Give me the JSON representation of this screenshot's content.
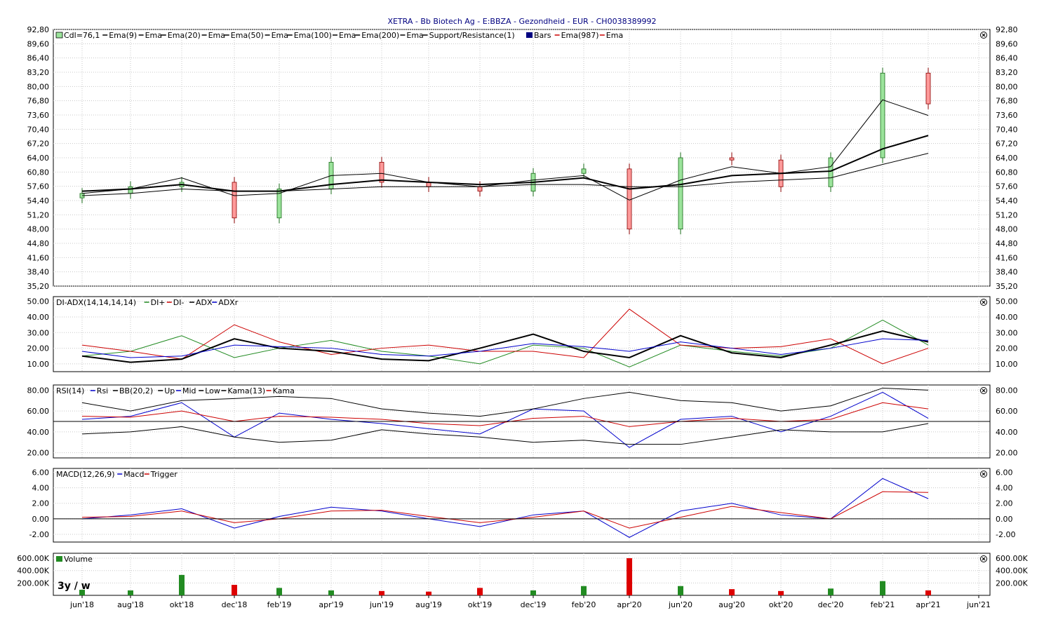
{
  "title": "XETRA - Bb Biotech Ag - E:BBZA - Gezondheid - EUR - CH0038389992",
  "period_badge": "3y / w",
  "x_axis_labels": [
    "jun'18",
    "aug'18",
    "okt'18",
    "dec'18",
    "feb'19",
    "apr'19",
    "jun'19",
    "aug'19",
    "okt'19",
    "dec'19",
    "feb'20",
    "apr'20",
    "jun'20",
    "aug'20",
    "okt'20",
    "dec'20",
    "feb'21",
    "apr'21",
    "jun'21"
  ],
  "panels": {
    "price": {
      "legend": [
        {
          "text": "Cdl=76,1",
          "color": "#000000",
          "swatch": "candle"
        },
        {
          "text": "Ema(9)",
          "color": "#000000"
        },
        {
          "text": "Ema",
          "color": "#000000"
        },
        {
          "text": "Ema(20)",
          "color": "#000000"
        },
        {
          "text": "Ema",
          "color": "#000000"
        },
        {
          "text": "Ema(50)",
          "color": "#000000"
        },
        {
          "text": "Ema",
          "color": "#000000"
        },
        {
          "text": "Ema(100)",
          "color": "#000000"
        },
        {
          "text": "Ema",
          "color": "#000000"
        },
        {
          "text": "Ema(200)",
          "color": "#000000"
        },
        {
          "text": "Ema",
          "color": "#000000"
        },
        {
          "text": "Support/Resistance(1)",
          "color": "#000000"
        },
        {
          "text": "Bars",
          "color": "#000080",
          "swatch": "box"
        },
        {
          "text": "Ema(987)",
          "color": "#cc0000"
        },
        {
          "text": "Ema",
          "color": "#cc0000"
        }
      ],
      "y_labels": [
        "92,80",
        "89,60",
        "86,40",
        "83,20",
        "80,00",
        "76,80",
        "73,60",
        "70,40",
        "67,20",
        "64,00",
        "60,80",
        "57,60",
        "54,40",
        "51,20",
        "48,00",
        "44,80",
        "41,60",
        "38,40",
        "35,20"
      ]
    },
    "adx": {
      "legend": [
        {
          "text": "DI-ADX(14,14,14,14)",
          "color": "#000000"
        },
        {
          "text": "DI+",
          "color": "#228B22"
        },
        {
          "text": "DI-",
          "color": "#cc0000"
        },
        {
          "text": "ADX",
          "color": "#000000"
        },
        {
          "text": "ADXr",
          "color": "#0000cc"
        }
      ],
      "y_labels": [
        "50.00",
        "40.00",
        "30.00",
        "20.00",
        "10.00"
      ]
    },
    "rsi": {
      "legend": [
        {
          "text": "RSI(14)",
          "color": "#000000"
        },
        {
          "text": "Rsi",
          "color": "#0000cc"
        },
        {
          "text": "BB(20,2)",
          "color": "#000000"
        },
        {
          "text": "Up",
          "color": "#000000"
        },
        {
          "text": "Mid",
          "color": "#0000cc"
        },
        {
          "text": "Low",
          "color": "#000000"
        },
        {
          "text": "Kama(13)",
          "color": "#000000"
        },
        {
          "text": "Kama",
          "color": "#cc0000"
        }
      ],
      "y_labels": [
        "80.00",
        "60.00",
        "40.00",
        "20.00"
      ]
    },
    "macd": {
      "legend": [
        {
          "text": "MACD(12,26,9)",
          "color": "#000000"
        },
        {
          "text": "Macd",
          "color": "#0000cc"
        },
        {
          "text": "Trigger",
          "color": "#cc0000"
        }
      ],
      "y_labels": [
        "6.00",
        "4.00",
        "2.00",
        "0.00",
        "-2.00"
      ]
    },
    "volume": {
      "legend": [
        {
          "text": "Volume",
          "color": "#000000",
          "swatch": "vol"
        }
      ],
      "y_labels": [
        "600.00K",
        "400.00K",
        "200.00K"
      ]
    }
  },
  "chart_data": [
    {
      "type": "line",
      "panel": "price",
      "description": "Weekly candlestick with EMAs",
      "x": [
        "jun'18",
        "aug'18",
        "okt'18",
        "dec'18",
        "feb'19",
        "apr'19",
        "jun'19",
        "aug'19",
        "okt'19",
        "dec'19",
        "feb'20",
        "apr'20",
        "jun'20",
        "aug'20",
        "okt'20",
        "dec'20",
        "feb'21",
        "apr'21"
      ],
      "series": [
        {
          "name": "Cdl",
          "values": [
            56.0,
            57.5,
            58.5,
            50.5,
            57.0,
            63.0,
            58.5,
            57.5,
            56.5,
            60.5,
            61.5,
            48.0,
            64.0,
            63.5,
            57.5,
            64.0,
            83.0,
            76.1
          ]
        },
        {
          "name": "Ema(20)",
          "values": [
            56.0,
            57.0,
            59.5,
            55.5,
            56.0,
            60.0,
            60.5,
            58.5,
            57.5,
            59.0,
            60.0,
            54.5,
            59.0,
            62.0,
            60.5,
            62.0,
            77.0,
            73.5
          ]
        },
        {
          "name": "Ema(50)",
          "values": [
            56.5,
            57.0,
            58.0,
            56.5,
            56.5,
            58.0,
            59.0,
            58.5,
            58.0,
            58.5,
            59.5,
            57.0,
            58.0,
            60.0,
            60.5,
            61.0,
            66.0,
            69.0
          ]
        },
        {
          "name": "Ema(100)",
          "values": [
            55.5,
            56.0,
            57.0,
            56.5,
            56.5,
            57.0,
            57.5,
            57.5,
            57.5,
            58.0,
            58.0,
            57.5,
            57.5,
            58.5,
            59.0,
            59.5,
            62.5,
            65.0
          ]
        }
      ],
      "ylim": [
        35.2,
        92.8
      ]
    },
    {
      "type": "line",
      "panel": "adx",
      "x": [
        "jun'18",
        "aug'18",
        "okt'18",
        "dec'18",
        "feb'19",
        "apr'19",
        "jun'19",
        "aug'19",
        "okt'19",
        "dec'19",
        "feb'20",
        "apr'20",
        "jun'20",
        "aug'20",
        "okt'20",
        "dec'20",
        "feb'21",
        "apr'21"
      ],
      "series": [
        {
          "name": "DI+",
          "values": [
            15,
            18,
            28,
            14,
            20,
            25,
            18,
            15,
            10,
            22,
            20,
            8,
            22,
            18,
            15,
            20,
            38,
            22
          ]
        },
        {
          "name": "DI-",
          "values": [
            22,
            18,
            13,
            35,
            24,
            16,
            20,
            22,
            18,
            18,
            14,
            45,
            22,
            20,
            21,
            26,
            10,
            20
          ]
        },
        {
          "name": "ADX",
          "values": [
            15,
            11,
            13,
            26,
            20,
            18,
            13,
            12,
            20,
            29,
            18,
            14,
            28,
            17,
            14,
            22,
            31,
            24
          ]
        },
        {
          "name": "ADXr",
          "values": [
            18,
            14,
            15,
            22,
            21,
            20,
            16,
            15,
            18,
            23,
            21,
            18,
            24,
            20,
            16,
            20,
            26,
            25
          ]
        }
      ],
      "ylim": [
        5,
        53
      ]
    },
    {
      "type": "line",
      "panel": "rsi",
      "x": [
        "jun'18",
        "aug'18",
        "okt'18",
        "dec'18",
        "feb'19",
        "apr'19",
        "jun'19",
        "aug'19",
        "okt'19",
        "dec'19",
        "feb'20",
        "apr'20",
        "jun'20",
        "aug'20",
        "okt'20",
        "dec'20",
        "feb'21",
        "apr'21"
      ],
      "series": [
        {
          "name": "Rsi",
          "values": [
            52,
            55,
            68,
            35,
            58,
            52,
            48,
            43,
            38,
            62,
            60,
            25,
            52,
            55,
            40,
            55,
            78,
            53
          ]
        },
        {
          "name": "Up",
          "values": [
            68,
            60,
            70,
            72,
            74,
            72,
            62,
            58,
            55,
            62,
            72,
            78,
            70,
            68,
            60,
            65,
            82,
            80
          ]
        },
        {
          "name": "Low",
          "values": [
            38,
            40,
            45,
            35,
            30,
            32,
            42,
            38,
            35,
            30,
            32,
            28,
            28,
            35,
            42,
            40,
            40,
            48
          ]
        },
        {
          "name": "Kama",
          "values": [
            55,
            54,
            60,
            50,
            55,
            54,
            52,
            48,
            46,
            53,
            55,
            45,
            50,
            53,
            50,
            52,
            68,
            62
          ]
        }
      ],
      "ylim": [
        15,
        85
      ]
    },
    {
      "type": "line",
      "panel": "macd",
      "x": [
        "jun'18",
        "aug'18",
        "okt'18",
        "dec'18",
        "feb'19",
        "apr'19",
        "jun'19",
        "aug'19",
        "okt'19",
        "dec'19",
        "feb'20",
        "apr'20",
        "jun'20",
        "aug'20",
        "okt'20",
        "dec'20",
        "feb'21",
        "apr'21"
      ],
      "series": [
        {
          "name": "Macd",
          "values": [
            0.0,
            0.5,
            1.3,
            -1.2,
            0.3,
            1.5,
            1.0,
            0.0,
            -1.0,
            0.5,
            1.0,
            -2.4,
            1.0,
            2.0,
            0.5,
            0.0,
            5.2,
            2.6
          ]
        },
        {
          "name": "Trigger",
          "values": [
            0.2,
            0.3,
            1.0,
            -0.5,
            0.0,
            1.0,
            1.1,
            0.3,
            -0.5,
            0.2,
            1.0,
            -1.2,
            0.2,
            1.6,
            0.8,
            0.0,
            3.5,
            3.4
          ]
        }
      ],
      "ylim": [
        -3,
        6.5
      ]
    },
    {
      "type": "bar",
      "panel": "volume",
      "x": [
        "jun'18",
        "aug'18",
        "okt'18",
        "dec'18",
        "feb'19",
        "apr'19",
        "jun'19",
        "aug'19",
        "okt'19",
        "dec'19",
        "feb'20",
        "apr'20",
        "jun'20",
        "aug'20",
        "okt'20",
        "dec'20",
        "feb'21",
        "apr'21"
      ],
      "values": [
        90000,
        80000,
        330000,
        170000,
        120000,
        80000,
        70000,
        60000,
        120000,
        80000,
        150000,
        600000,
        150000,
        100000,
        70000,
        110000,
        230000,
        80000
      ],
      "ylim": [
        0,
        680000
      ]
    }
  ]
}
